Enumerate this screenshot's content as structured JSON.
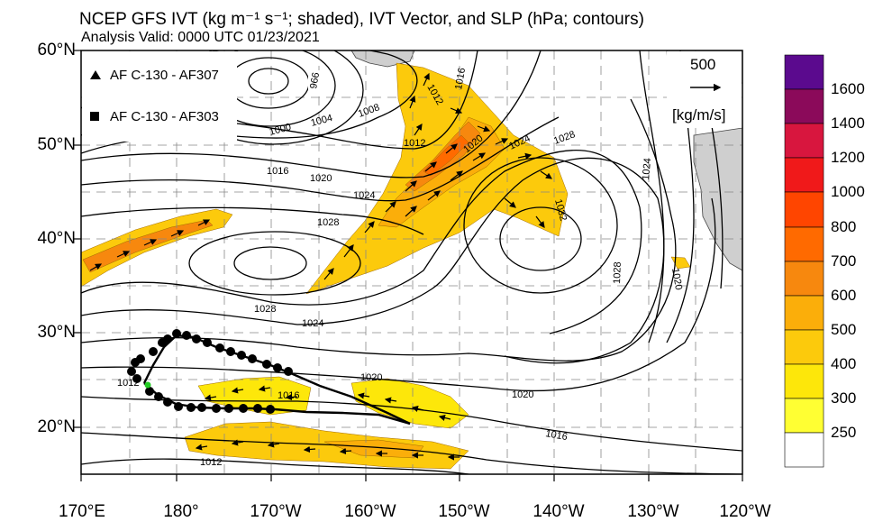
{
  "title": "NCEP GFS IVT (kg m⁻¹ s⁻¹; shaded), IVT Vector, and SLP (hPa; contours)",
  "subtitle": "Analysis Valid: 0000 UTC 01/23/2021",
  "legend": {
    "items": [
      {
        "marker": "triangle",
        "label": "AF C-130 - AF307"
      },
      {
        "marker": "square",
        "label": "AF C-130 - AF303"
      }
    ]
  },
  "vector_reference": {
    "value": "500",
    "units": "[kg/m/s]"
  },
  "lat_labels": [
    "60°N",
    "50°N",
    "40°N",
    "30°N",
    "20°N"
  ],
  "lon_labels": [
    "170°E",
    "180°",
    "170°W",
    "160°W",
    "150°W",
    "140°W",
    "130°W",
    "120°W"
  ],
  "colorbar": {
    "labels": [
      "1600",
      "1400",
      "1200",
      "1000",
      "800",
      "700",
      "600",
      "500",
      "400",
      "300",
      "250"
    ],
    "colors": [
      "#5b0a8e",
      "#8b0a5a",
      "#d8163e",
      "#f0191a",
      "#ff4500",
      "#ff6a00",
      "#f7880e",
      "#fbae0a",
      "#fcca0c",
      "#fde70a",
      "#ffff33",
      "#ffffff"
    ]
  },
  "contour_labels": [
    "966",
    "1000",
    "1004",
    "1008",
    "1012",
    "1012",
    "1016",
    "1016",
    "1020",
    "1020",
    "1024",
    "1024",
    "1024",
    "1028",
    "1028",
    "1028",
    "1032",
    "1024",
    "1028",
    "1020",
    "1020",
    "1020",
    "1016",
    "1016",
    "1012",
    "1012"
  ],
  "flight_track_color": "#000000",
  "flight_start_marker_color": "#22cc22"
}
